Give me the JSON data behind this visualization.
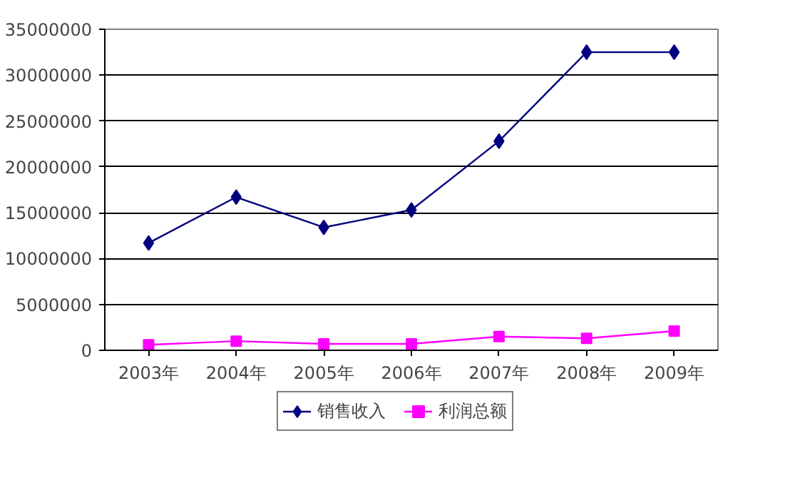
{
  "chart_data": {
    "type": "line",
    "categories": [
      "2003年",
      "2004年",
      "2005年",
      "2006年",
      "2007年",
      "2008年",
      "2009年"
    ],
    "series": [
      {
        "name": "销售收入",
        "color": "#000080",
        "marker": "diamond",
        "values": [
          11700000,
          16700000,
          13400000,
          15300000,
          22800000,
          32500000,
          32500000
        ]
      },
      {
        "name": "利润总额",
        "color": "#ff00ff",
        "marker": "square",
        "values": [
          600000,
          1000000,
          700000,
          700000,
          1500000,
          1300000,
          2100000
        ]
      }
    ],
    "ylim": [
      0,
      35000000
    ],
    "yticks": [
      0,
      5000000,
      10000000,
      15000000,
      20000000,
      25000000,
      30000000,
      35000000
    ],
    "grid": "y",
    "legend": "bottom",
    "line_style": "solid"
  }
}
